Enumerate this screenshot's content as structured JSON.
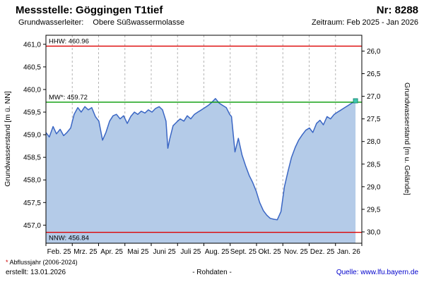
{
  "header": {
    "station_label": "Messstelle: Göggingen T1tief",
    "number_label": "Nr: 8288",
    "aquifer_label": "Grundwasserleiter:",
    "aquifer_value": "Obere Süßwassermolasse",
    "period_label": "Zeitraum: Feb 2025 - Jan 2026"
  },
  "chart_data": {
    "type": "area",
    "title": "Messstelle: Göggingen T1tief",
    "xlabel": "",
    "ylabel_left": "Grundwasserstand [m ü. NN]",
    "ylabel_right": "Grundwasserstand [m u. Gelände]",
    "ylim_left": [
      456.6,
      461.2
    ],
    "yticks_left": [
      457.0,
      457.5,
      458.0,
      458.5,
      459.0,
      459.5,
      460.0,
      460.5,
      461.0
    ],
    "yticks_right": [
      26.0,
      26.5,
      27.0,
      27.5,
      28.0,
      28.5,
      29.0,
      29.5,
      30.0
    ],
    "ground_offset": 486.85,
    "grid": "vertical-dashed",
    "legend_position": "none",
    "x_months": [
      "Feb. 25",
      "Mrz. 25",
      "Apr. 25",
      "Mai 25",
      "Juni 25",
      "Juli 25",
      "Aug. 25",
      "Sept. 25",
      "Okt. 25",
      "Nov. 25",
      "Dez. 25",
      "Jan. 26"
    ],
    "reference_lines": [
      {
        "name": "HHW",
        "label": "HHW: 460.96",
        "value": 460.96,
        "color": "#dd0000",
        "label_position": "above"
      },
      {
        "name": "MW",
        "label": "MW*: 459.72",
        "value": 459.72,
        "color": "#009900",
        "label_position": "above"
      },
      {
        "name": "NNW",
        "label": "NNW: 456.84",
        "value": 456.84,
        "color": "#dd0000",
        "label_position": "below"
      }
    ],
    "series": [
      {
        "name": "Grundwasserstand (Rohdaten)",
        "x": [
          0.0,
          0.13,
          0.27,
          0.4,
          0.54,
          0.67,
          0.8,
          0.94,
          1.07,
          1.21,
          1.34,
          1.48,
          1.61,
          1.74,
          1.88,
          2.01,
          2.15,
          2.28,
          2.42,
          2.55,
          2.68,
          2.82,
          2.95,
          3.09,
          3.22,
          3.36,
          3.49,
          3.62,
          3.76,
          3.89,
          4.03,
          4.16,
          4.3,
          4.43,
          4.56,
          4.63,
          4.7,
          4.83,
          4.97,
          5.1,
          5.24,
          5.37,
          5.5,
          5.64,
          5.77,
          5.91,
          6.04,
          6.17,
          6.31,
          6.44,
          6.58,
          6.71,
          6.85,
          6.98,
          7.05,
          7.18,
          7.31,
          7.45,
          7.58,
          7.72,
          7.85,
          7.99,
          8.12,
          8.26,
          8.39,
          8.52,
          8.66,
          8.79,
          8.93,
          9.06,
          9.2,
          9.33,
          9.47,
          9.6,
          9.74,
          9.87,
          10.01,
          10.14,
          10.28,
          10.41,
          10.54,
          10.68,
          10.81,
          10.95,
          11.08,
          11.22,
          11.35,
          11.49,
          11.62,
          11.76
        ],
        "values": [
          459.05,
          458.95,
          459.18,
          459.02,
          459.12,
          458.98,
          459.05,
          459.15,
          459.45,
          459.6,
          459.5,
          459.62,
          459.55,
          459.6,
          459.4,
          459.3,
          458.88,
          459.05,
          459.3,
          459.42,
          459.45,
          459.35,
          459.42,
          459.25,
          459.4,
          459.5,
          459.45,
          459.52,
          459.48,
          459.55,
          459.5,
          459.58,
          459.62,
          459.55,
          459.3,
          458.7,
          458.9,
          459.2,
          459.28,
          459.35,
          459.3,
          459.42,
          459.35,
          459.45,
          459.5,
          459.55,
          459.6,
          459.65,
          459.72,
          459.8,
          459.7,
          459.65,
          459.6,
          459.45,
          459.4,
          458.62,
          458.92,
          458.55,
          458.32,
          458.1,
          457.95,
          457.75,
          457.5,
          457.32,
          457.22,
          457.15,
          457.13,
          457.12,
          457.3,
          457.85,
          458.2,
          458.5,
          458.72,
          458.88,
          459.0,
          459.1,
          459.15,
          459.05,
          459.25,
          459.32,
          459.22,
          459.4,
          459.35,
          459.45,
          459.5,
          459.55,
          459.6,
          459.65,
          459.7,
          459.75
        ]
      }
    ],
    "line_color": "#3a66c4",
    "fill_color": "#b4cbe8",
    "end_marker_color": "#3fc8ae"
  },
  "footer": {
    "footnote_marker": "*",
    "footnote_text": "Abflussjahr (2006-2024)",
    "created_label": "erstellt: 13.01.2026",
    "center_label": "- Rohdaten -",
    "source_label": "Quelle: www.lfu.bayern.de"
  }
}
